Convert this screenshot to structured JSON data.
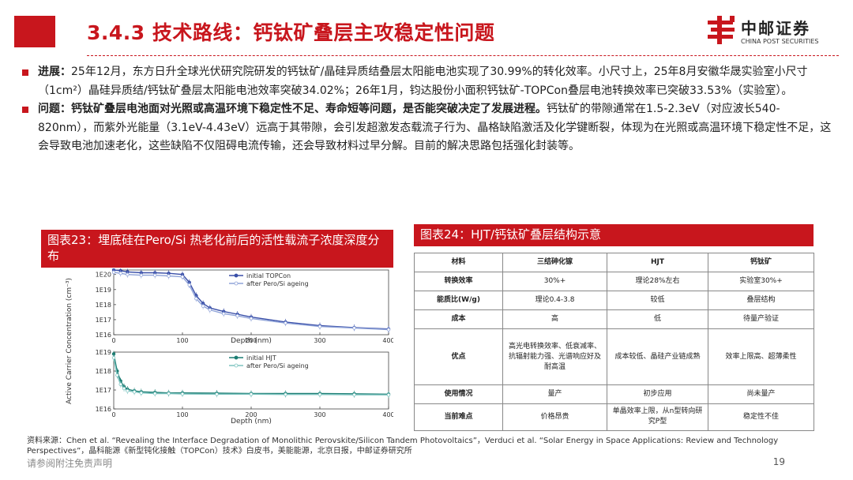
{
  "header": {
    "title": "3.4.3 技术路线：钙钛矿叠层主攻稳定性问题",
    "logo_cn": "中邮证券",
    "logo_en": "CHINA POST SECURITIES",
    "accent_color": "#c8161d"
  },
  "bullets": [
    {
      "label": "进展：",
      "text": "25年12月，东方日升全球光伏研究院研发的钙钛矿/晶硅异质结叠层太阳能电池实现了30.99%的转化效率。小尺寸上，25年8月安徽华晟实验室小尺寸（1cm²）晶硅异质结/钙钛矿叠层太阳能电池效率突破34.02%；26年1月，钧达股份小面积钙钛矿-TOPCon叠层电池转换效率已突破33.53%（实验室）。"
    },
    {
      "label": "问题：",
      "bold_text": "钙钛矿叠层电池面对光照或高温环境下稳定性不足、寿命短等问题，是否能突破决定了发展进程。",
      "text": "钙钛矿的带隙通常在1.5-2.3eV（对应波长540-820nm），而紫外光能量（3.1eV-4.43eV）远高于其带隙，会引发超激发态载流子行为、晶格缺陷激活及化学键断裂，体现为在光照或高温环境下稳定性不足，这会导致电池加速老化，这些缺陷不仅阻碍电流传输，还会导致材料过早分解。目前的解决思路包括强化封装等。"
    }
  ],
  "fig23": {
    "title": "图表23：埋底硅在Pero/Si 热老化前后的活性载流子浓度深度分布"
  },
  "fig24": {
    "title": "图表24：HJT/钙钛矿叠层结构示意"
  },
  "chart_data": {
    "type": "line",
    "ylabel": "Active Carrier Concentration (cm⁻³)",
    "xlabel": "Depth (nm)",
    "yscale": "log",
    "panels": [
      {
        "x_ticks": [
          "0",
          "100",
          "200",
          "300",
          "400"
        ],
        "y_ticks": [
          "1E20",
          "1E19",
          "1E18",
          "1E17",
          "1E16"
        ],
        "xlim": [
          0,
          400
        ],
        "ylim_exp": [
          16,
          20.3
        ],
        "legend": [
          "initial TOPCon",
          "after Pero/Si ageing"
        ],
        "legend_position": "top-right",
        "series": [
          {
            "name": "initial TOPCon",
            "color": "#3a4fa8",
            "x": [
              0,
              10,
              20,
              40,
              60,
              80,
              100,
              110,
              120,
              130,
              140,
              160,
              180,
              200,
              250,
              300,
              350,
              400
            ],
            "y": [
              2e+20,
              1.8e+20,
              1.5e+20,
              1.3e+20,
              1.3e+20,
              1.2e+20,
              1e+20,
              3e+19,
              4e+18,
              1.2e+18,
              6e+17,
              3.5e+17,
              2.3e+17,
              1.5e+17,
              7e+16,
              4e+16,
              3e+16,
              2.4e+16
            ]
          },
          {
            "name": "after Pero/Si ageing",
            "color": "#8fa3d8",
            "x": [
              0,
              10,
              20,
              40,
              60,
              80,
              100,
              110,
              120,
              130,
              140,
              160,
              180,
              200,
              250,
              300,
              350,
              400
            ],
            "y": [
              1.4e+20,
              1.2e+20,
              1e+20,
              9e+19,
              9e+19,
              8e+19,
              7e+19,
              2e+19,
              2.5e+18,
              8e+17,
              4.5e+17,
              2.5e+17,
              1.8e+17,
              1.2e+17,
              6e+16,
              3.5e+16,
              2.8e+16,
              2.2e+16
            ]
          }
        ]
      },
      {
        "x_ticks": [
          "0",
          "100",
          "200",
          "300",
          "400"
        ],
        "y_ticks": [
          "1E19",
          "1E18",
          "1E17",
          "1E16"
        ],
        "xlim": [
          0,
          400
        ],
        "ylim_exp": [
          16,
          19
        ],
        "legend": [
          "initial HJT",
          "after Pero/Si ageing"
        ],
        "legend_position": "top-right",
        "series": [
          {
            "name": "initial HJT",
            "color": "#1c7d73",
            "x": [
              0,
              5,
              10,
              15,
              20,
              30,
              40,
              60,
              80,
              100,
              150,
              200,
              250,
              300,
              350,
              400
            ],
            "y": [
              8e+18,
              1e+18,
              3e+17,
              1.5e+17,
              1.1e+17,
              9e+16,
              8e+16,
              7.5e+16,
              7e+16,
              7e+16,
              6.8e+16,
              6.5e+16,
              6.5e+16,
              6.5e+16,
              6.3e+16,
              6e+16
            ]
          },
          {
            "name": "after Pero/Si ageing",
            "color": "#7ec4c0",
            "x": [
              0,
              5,
              10,
              15,
              20,
              30,
              40,
              60,
              80,
              100,
              150,
              200,
              250,
              300,
              350,
              400
            ],
            "y": [
              5e+18,
              6e+17,
              2e+17,
              1.2e+17,
              9e+16,
              8e+16,
              7e+16,
              6.5e+16,
              6.5e+16,
              6.2e+16,
              6e+16,
              6e+16,
              5.8e+16,
              5.8e+16,
              5.6e+16,
              5.5e+16
            ]
          }
        ]
      }
    ]
  },
  "table": {
    "headers": [
      "材料",
      "三结砷化镓",
      "HJT",
      "钙钛矿"
    ],
    "rows": [
      [
        "转换效率",
        "30%+",
        "理论28%左右",
        "实验室30%+"
      ],
      [
        "能质比(W/g)",
        "理论0.4-3.8",
        "较低",
        "叠层结构"
      ],
      [
        "成本",
        "高",
        "低",
        "待量产验证"
      ],
      [
        "优点",
        "高光电转换效率、低衰减率、抗辐射能力强、光谱响应好及耐高温",
        "成本较低、晶硅产业链成熟",
        "效率上限高、超薄柔性"
      ],
      [
        "使用情况",
        "量产",
        "初步应用",
        "尚未量产"
      ],
      [
        "当前难点",
        "价格昂贵",
        "单晶效率上限，从n型转向研究P型",
        "稳定性不佳"
      ]
    ]
  },
  "source": "资料来源：Chen et al. “Revealing the Interface Degradation of Monolithic Perovskite/Silicon Tandem Photovoltaics”，Verduci et al. “Solar Energy in Space Applications: Review and Technology Perspectives”，晶科能源《新型钝化接触（TOPCon）技术》白皮书，美能能源，北京日报，中邮证券研究所",
  "footer": {
    "disclaimer": "请参阅附注免责声明",
    "page_number": "19"
  }
}
